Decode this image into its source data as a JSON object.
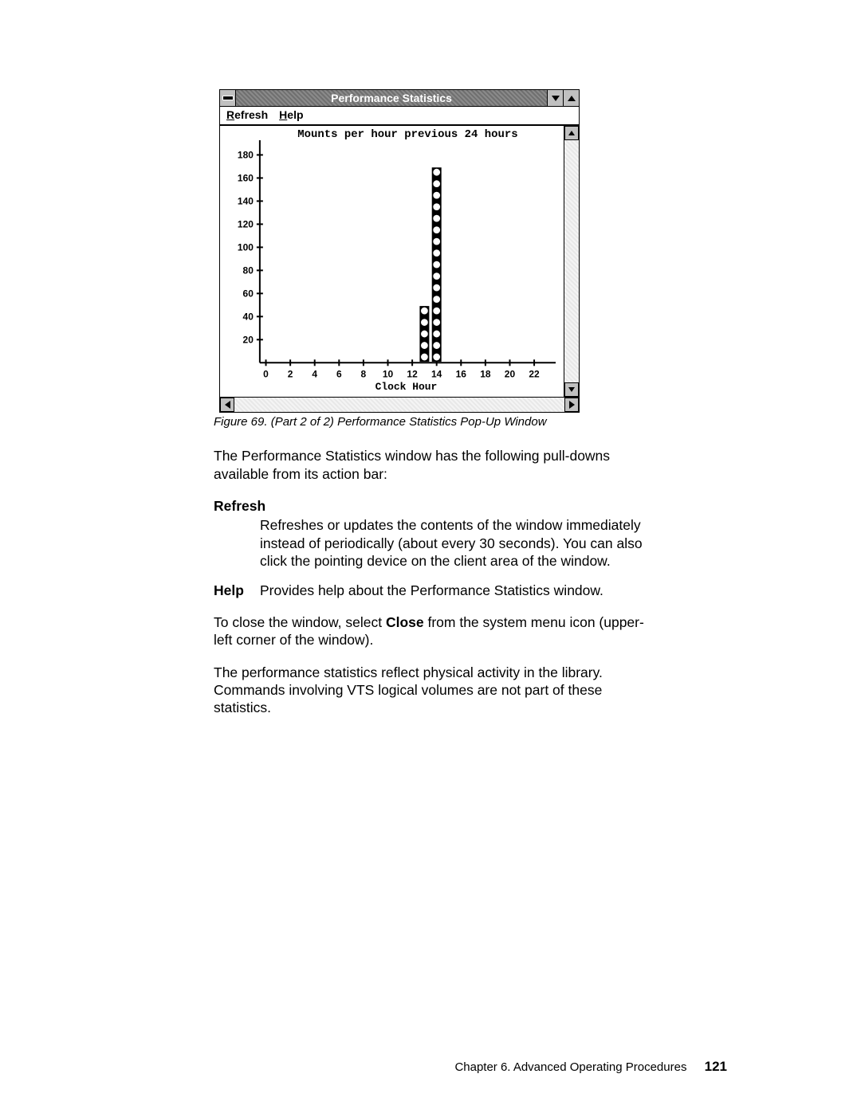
{
  "window": {
    "title": "Performance Statistics",
    "menus": {
      "refresh": "Refresh",
      "help": "Help"
    }
  },
  "chart": {
    "type": "scatter-column",
    "title": "Mounts per hour previous 24 hours",
    "xlabel": "Clock Hour",
    "ylim": [
      0,
      190
    ],
    "yticks": [
      20,
      40,
      60,
      80,
      100,
      120,
      140,
      160,
      180
    ],
    "xlim": [
      -0.5,
      23.5
    ],
    "xticks": [
      0,
      2,
      4,
      6,
      8,
      10,
      12,
      14,
      16,
      18,
      20,
      22
    ],
    "series": [
      {
        "x": 13,
        "ys": [
          5,
          15,
          25,
          35,
          45
        ],
        "marker": "circle-open",
        "marker_color": "#ffffff",
        "marker_edge": "#000000",
        "marker_size": 5,
        "bg_bar_color": "#000000"
      },
      {
        "x": 14,
        "ys": [
          5,
          15,
          25,
          35,
          45,
          55,
          65,
          75,
          85,
          95,
          105,
          115,
          125,
          135,
          145,
          155,
          165
        ],
        "marker": "circle-open",
        "marker_color": "#ffffff",
        "marker_edge": "#000000",
        "marker_size": 5,
        "bg_bar_color": "#000000"
      }
    ],
    "axis_color": "#000000",
    "background_color": "#ffffff",
    "tick_fontsize": 12,
    "title_fontsize": 14,
    "xlabel_fontsize": 13
  },
  "caption": "Figure 69. (Part 2 of 2) Performance Statistics Pop-Up Window",
  "para_intro": "The Performance Statistics window has the following pull-downs available from its action bar:",
  "defs": {
    "refresh_term": "Refresh",
    "refresh_def": "Refreshes or updates the contents of the window immediately instead of periodically (about every 30 seconds). You can also click the pointing device on the client area of the window.",
    "help_term": "Help",
    "help_def": "Provides help about the Performance Statistics window."
  },
  "para_close_a": "To close the window, select ",
  "para_close_bold": "Close",
  "para_close_b": " from the system menu icon (upper-left corner of the window).",
  "para_stats": "The performance statistics reflect physical activity in the library. Commands involving VTS logical volumes are not part of these statistics.",
  "footer_chapter": "Chapter 6. Advanced Operating Procedures",
  "footer_page": "121"
}
